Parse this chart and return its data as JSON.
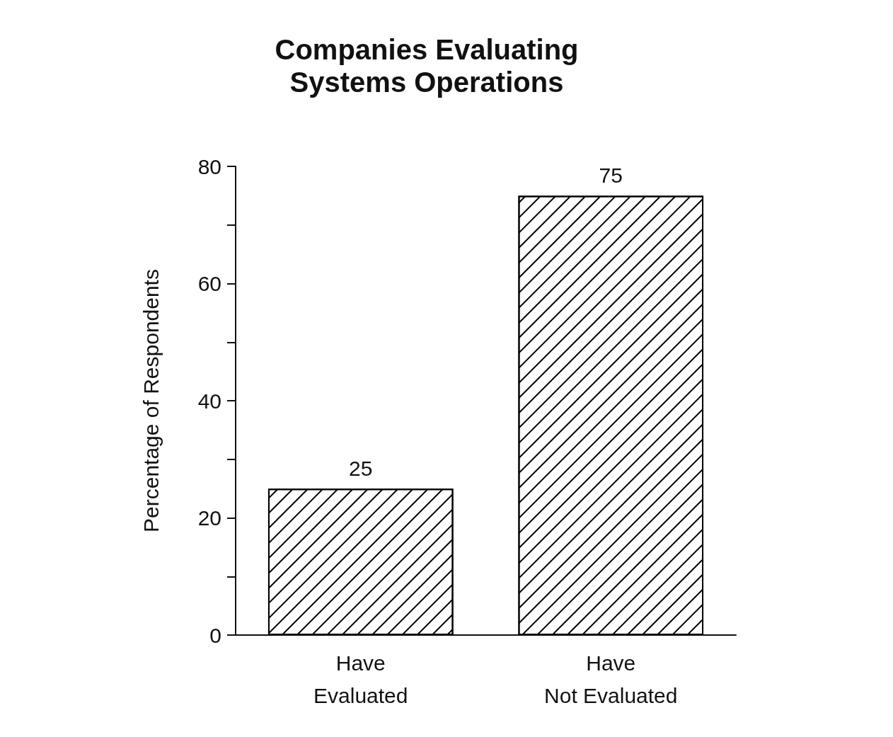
{
  "chart_data": {
    "type": "bar",
    "title": "Companies Evaluating\nSystems Operations",
    "categories": [
      "Have\nEvaluated",
      "Have\nNot Evaluated"
    ],
    "values": [
      25,
      75
    ],
    "color": "#000000",
    "ylabel": "Percentage of Respondents",
    "ylim": [
      0,
      80
    ],
    "yticks": [
      0,
      {
        "value": 10,
        "label": null
      },
      20,
      {
        "value": 30,
        "label": null
      },
      40,
      {
        "value": 50,
        "label": null
      },
      60,
      {
        "value": 70,
        "label": null
      },
      80
    ],
    "data_labels": true,
    "grid": false
  }
}
